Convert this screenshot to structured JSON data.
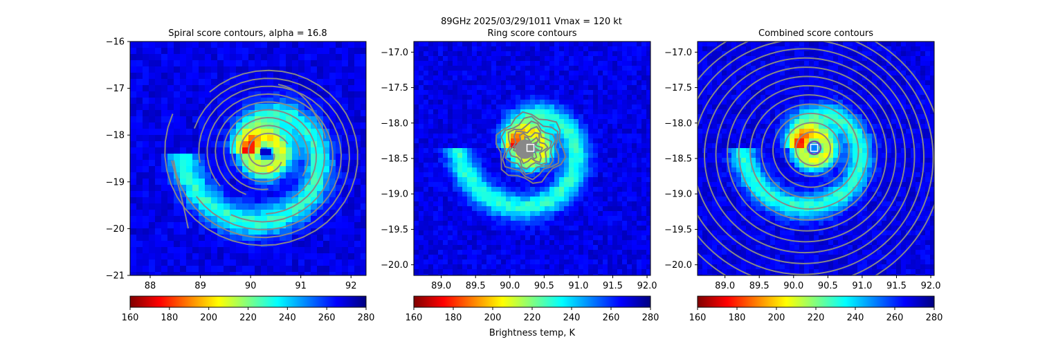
{
  "figure": {
    "suptitle_line1": "89GHz  2025/03/29/1011    Vmax = 120 kt",
    "colorbar_label": "Brightness temp, K"
  },
  "colorbar": {
    "ticks": [
      "160",
      "180",
      "200",
      "220",
      "240",
      "260",
      "280"
    ],
    "range": [
      160,
      280
    ],
    "colormap": "jet_r",
    "stops": [
      "#800000",
      "#ff0000",
      "#ff8000",
      "#ffff00",
      "#80ff80",
      "#00ffff",
      "#0080ff",
      "#0000ff",
      "#000080"
    ]
  },
  "chart_data": [
    {
      "type": "heatmap",
      "title": "Spiral score contours, alpha = 16.8",
      "xlim": [
        87.6,
        92.3
      ],
      "ylim": [
        -21,
        -16
      ],
      "xticks": [
        "88",
        "89",
        "90",
        "91",
        "92"
      ],
      "yticks": [
        "−16",
        "−17",
        "−18",
        "−19",
        "−20",
        "−21"
      ],
      "center": [
        90.3,
        -18.4
      ],
      "contour_color": "#888888",
      "overlay": "spiral contours",
      "marker": "blue rectangle at center"
    },
    {
      "type": "heatmap",
      "title": "Ring score contours",
      "xlim": [
        88.6,
        92.05
      ],
      "ylim": [
        -20.15,
        -16.85
      ],
      "xticks": [
        "89.0",
        "89.5",
        "90.0",
        "90.5",
        "91.0",
        "91.5",
        "92.0"
      ],
      "yticks": [
        "−17.0",
        "−17.5",
        "−18.0",
        "−18.5",
        "−19.0",
        "−19.5",
        "−20.0"
      ],
      "center": [
        90.3,
        -18.35
      ],
      "contour_color": "#808080",
      "overlay": "ring contours",
      "marker": "white square at center"
    },
    {
      "type": "heatmap",
      "title": "Combined score contours",
      "xlim": [
        88.6,
        92.05
      ],
      "ylim": [
        -20.15,
        -16.85
      ],
      "xticks": [
        "89.0",
        "89.5",
        "90.0",
        "90.5",
        "91.0",
        "91.5",
        "92.0"
      ],
      "yticks": [
        "−17.0",
        "−17.5",
        "−18.0",
        "−18.5",
        "−19.0",
        "−19.5",
        "−20.0"
      ],
      "center": [
        90.3,
        -18.35
      ],
      "contour_color": "#888888",
      "overlay": "concentric combined contours",
      "marker": "white square at center"
    }
  ]
}
